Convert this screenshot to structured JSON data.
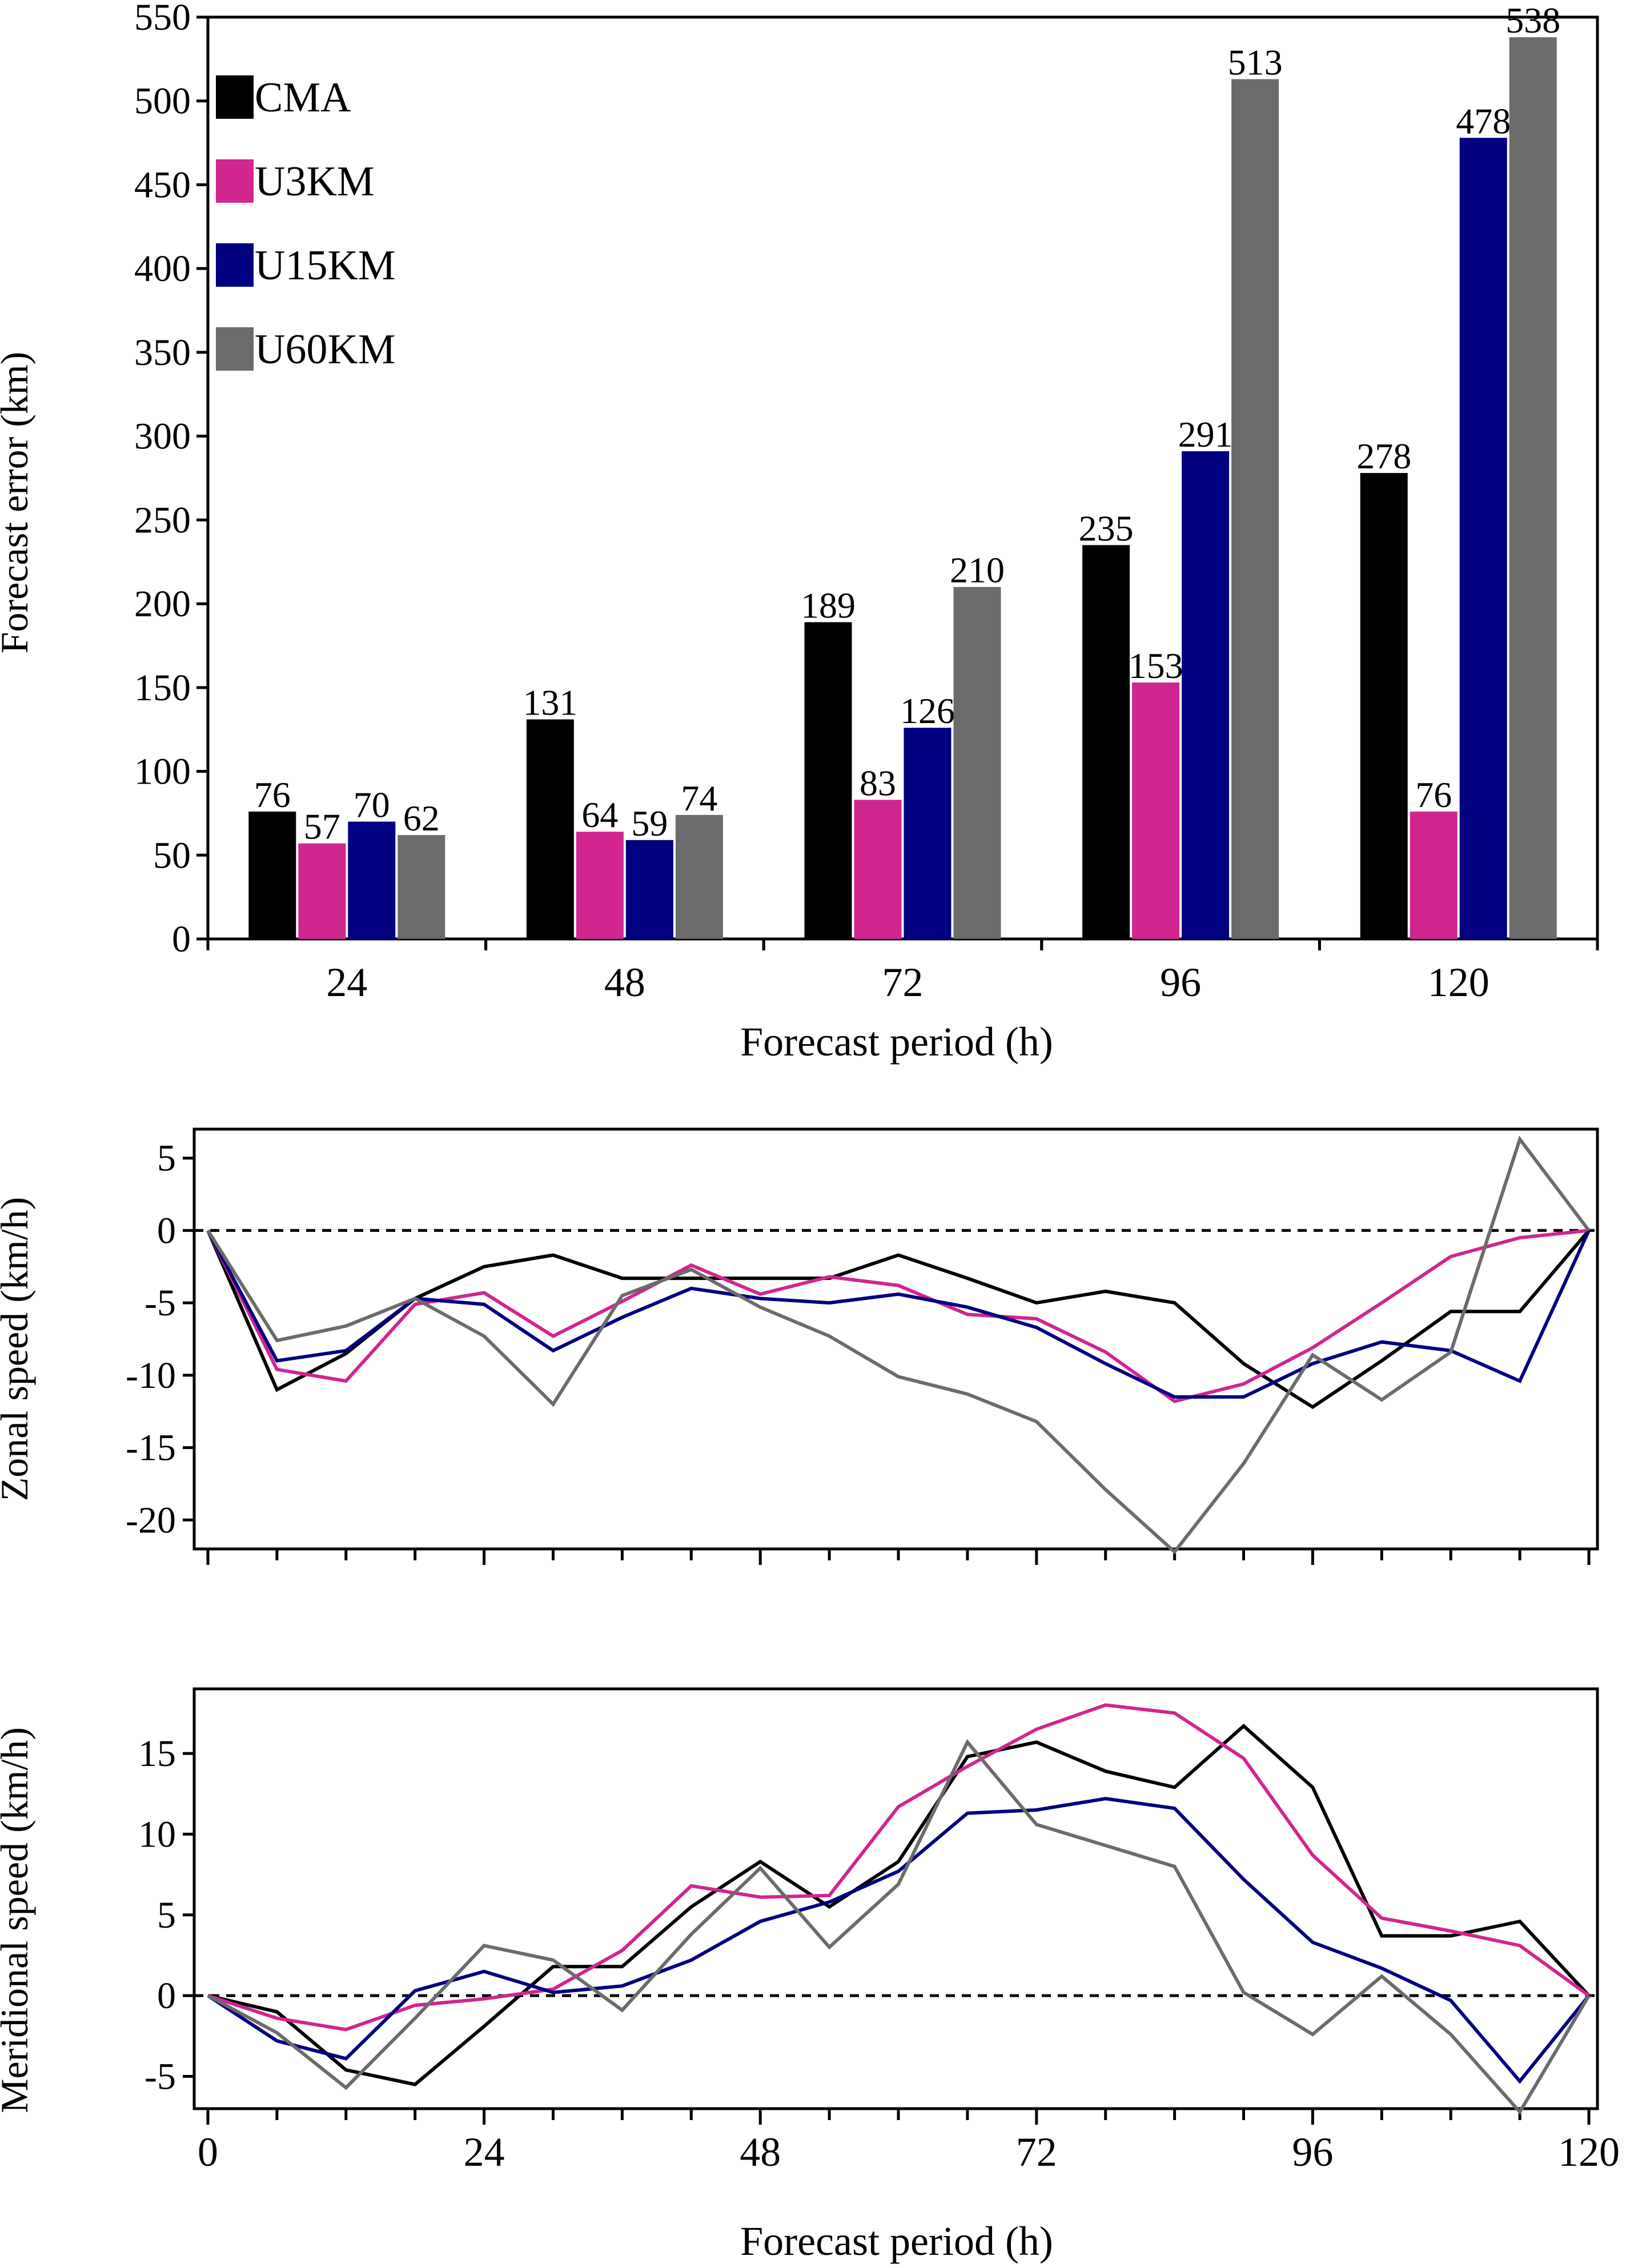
{
  "colors": {
    "CMA": "#000000",
    "U3KM": "#d12590",
    "U15KM": "#000080",
    "U60KM": "#6b6b6b"
  },
  "chart_data": [
    {
      "type": "bar",
      "title": "",
      "xlabel": "Forecast period (h)",
      "ylabel": "Forecast error (km)",
      "ylim": [
        0,
        550
      ],
      "yticks": [
        0,
        50,
        100,
        150,
        200,
        250,
        300,
        350,
        400,
        450,
        500,
        550
      ],
      "categories": [
        "24",
        "48",
        "72",
        "96",
        "120"
      ],
      "legend_position": "top-left",
      "series": [
        {
          "name": "CMA",
          "values": [
            76,
            131,
            189,
            235,
            278
          ]
        },
        {
          "name": "U3KM",
          "values": [
            57,
            64,
            83,
            153,
            76
          ]
        },
        {
          "name": "U15KM",
          "values": [
            70,
            59,
            126,
            291,
            478
          ]
        },
        {
          "name": "U60KM",
          "values": [
            62,
            74,
            210,
            513,
            538
          ]
        }
      ]
    },
    {
      "type": "line",
      "title": "",
      "xlabel": "",
      "ylabel": "Zonal speed (km/h)",
      "xlim": [
        0,
        120
      ],
      "ylim": [
        -22,
        7
      ],
      "yticks": [
        -20,
        -15,
        -10,
        -5,
        0,
        5
      ],
      "x": [
        0,
        6,
        12,
        18,
        24,
        30,
        36,
        42,
        48,
        54,
        60,
        66,
        72,
        78,
        84,
        90,
        96,
        102,
        108,
        114,
        120
      ],
      "zero_line": "dashed",
      "series": [
        {
          "key": "CMA",
          "values": [
            0,
            -11,
            -8.5,
            -4.7,
            -2.5,
            -1.7,
            -3.3,
            -3.3,
            -3.3,
            -3.3,
            -1.7,
            -3.3,
            -5,
            -4.2,
            -5,
            -9.2,
            -12.2,
            -9,
            -5.6,
            -5.6,
            0
          ]
        },
        {
          "key": "U3KM",
          "values": [
            0,
            -9.6,
            -10.4,
            -5.1,
            -4.3,
            -7.3,
            -4.9,
            -2.4,
            -4.4,
            -3.2,
            -3.8,
            -5.8,
            -6.1,
            -8.4,
            -11.8,
            -10.6,
            -8.1,
            -5,
            -1.8,
            -0.5,
            0
          ]
        },
        {
          "key": "U15KM",
          "values": [
            0,
            -9,
            -8.3,
            -4.7,
            -5.1,
            -8.3,
            -6,
            -4,
            -4.7,
            -5,
            -4.4,
            -5.3,
            -6.7,
            -9.2,
            -11.5,
            -11.5,
            -9.2,
            -7.7,
            -8.3,
            -10.4,
            0
          ]
        },
        {
          "key": "U60KM",
          "values": [
            0,
            -7.6,
            -6.6,
            -4.7,
            -7.3,
            -12,
            -4.5,
            -2.7,
            -5.3,
            -7.3,
            -10.1,
            -11.3,
            -13.2,
            -17.9,
            -22.2,
            -16.1,
            -8.6,
            -11.7,
            -8.4,
            6.3,
            0
          ]
        }
      ]
    },
    {
      "type": "line",
      "title": "",
      "xlabel": "Forecast period (h)",
      "ylabel": "Meridional speed (km/h)",
      "xlim": [
        0,
        120
      ],
      "ylim": [
        -7,
        19
      ],
      "yticks": [
        -5,
        0,
        5,
        10,
        15
      ],
      "xticks": [
        0,
        24,
        48,
        72,
        96,
        120
      ],
      "x": [
        0,
        6,
        12,
        18,
        24,
        30,
        36,
        42,
        48,
        54,
        60,
        66,
        72,
        78,
        84,
        90,
        96,
        102,
        108,
        114,
        120
      ],
      "zero_line": "dashed",
      "series": [
        {
          "key": "CMA",
          "values": [
            0,
            -1,
            -4.6,
            -5.5,
            -1.9,
            1.8,
            1.8,
            5.5,
            8.3,
            5.5,
            8.3,
            14.8,
            15.7,
            13.9,
            12.9,
            16.7,
            12.9,
            3.7,
            3.7,
            4.6,
            0
          ]
        },
        {
          "key": "U3KM",
          "values": [
            0,
            -1.4,
            -2.1,
            -0.6,
            -0.2,
            0.4,
            2.8,
            6.8,
            6.1,
            6.2,
            11.7,
            14.2,
            16.5,
            18,
            17.5,
            14.7,
            8.7,
            4.8,
            4,
            3.1,
            0
          ]
        },
        {
          "key": "U15KM",
          "values": [
            0,
            -2.8,
            -3.9,
            0.3,
            1.5,
            0.2,
            0.6,
            2.2,
            4.6,
            5.8,
            7.7,
            11.3,
            11.5,
            12.2,
            11.6,
            7.2,
            3.3,
            1.7,
            -0.3,
            -5.3,
            0
          ]
        },
        {
          "key": "U60KM",
          "values": [
            0,
            -2.3,
            -5.7,
            -1.4,
            3.1,
            2.2,
            -0.9,
            3.8,
            7.9,
            3,
            6.9,
            15.7,
            10.6,
            9.3,
            8,
            0.2,
            -2.4,
            1.2,
            -2.4,
            -7.2,
            0
          ]
        }
      ]
    }
  ]
}
